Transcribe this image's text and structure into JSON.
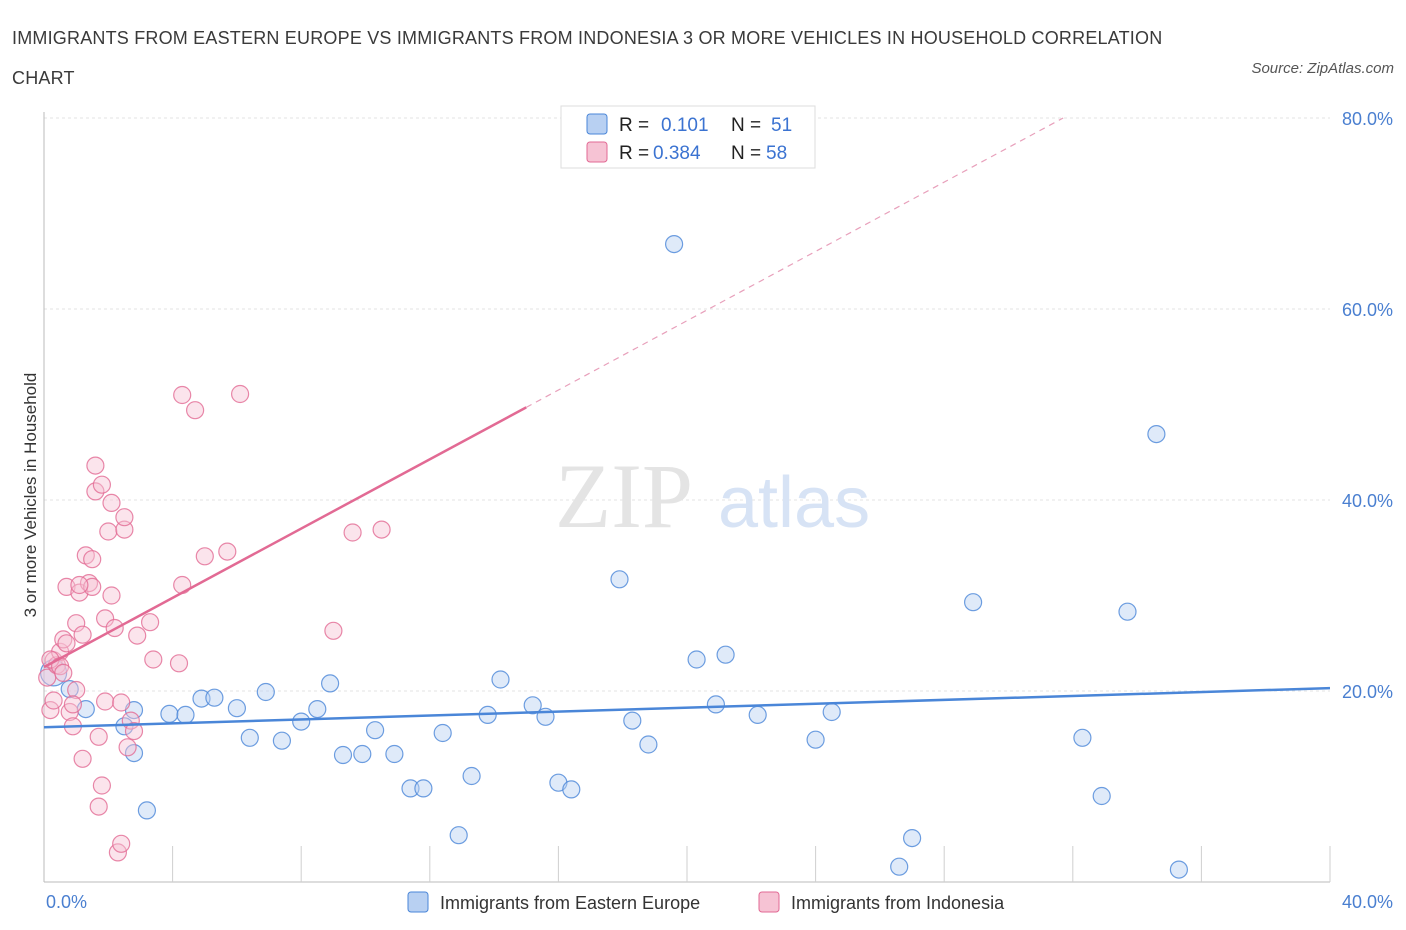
{
  "title": "IMMIGRANTS FROM EASTERN EUROPE VS IMMIGRANTS FROM INDONESIA 3 OR MORE VEHICLES IN HOUSEHOLD CORRELATION CHART",
  "source": "Source: ZipAtlas.com",
  "colors": {
    "blue": "#4a86d8",
    "blue_fill": "#b8d0f2",
    "pink": "#e26a94",
    "pink_fill": "#f6c3d4",
    "tick_text": "#4a7fd0"
  },
  "legend": {
    "series": [
      {
        "r_label": "R =",
        "r_value": "0.101",
        "n_label": "N =",
        "n_value": "51"
      },
      {
        "r_label": "R =",
        "r_value": "0.384",
        "n_label": "N =",
        "n_value": "58"
      }
    ]
  },
  "bottom_legend": [
    "Immigrants from Eastern Europe",
    "Immigrants from Indonesia"
  ],
  "chart_data": {
    "type": "scatter",
    "title": "IMMIGRANTS FROM EASTERN EUROPE VS IMMIGRANTS FROM INDONESIA 3 OR MORE VEHICLES IN HOUSEHOLD CORRELATION CHART",
    "xlabel": "",
    "ylabel": "3 or more Vehicles in Household",
    "xlim": [
      0,
      40
    ],
    "ylim": [
      0,
      80
    ],
    "x_tick_labels": [
      "0.0%",
      "40.0%"
    ],
    "y_tick_labels": [
      "20.0%",
      "40.0%",
      "60.0%",
      "80.0%"
    ],
    "y_tick_values": [
      20,
      40,
      60,
      80
    ],
    "grid": true,
    "watermark": [
      "ZIP",
      "atlas"
    ],
    "series": [
      {
        "name": "Immigrants from Eastern Europe",
        "color": "#4a86d8",
        "trend": {
          "x0": 0,
          "y0": 16.2,
          "x1": 40,
          "y1": 20.3,
          "dashed_from_x": null
        },
        "points": [
          [
            0.3,
            21.9
          ],
          [
            0.8,
            20.2
          ],
          [
            1.3,
            18.1
          ],
          [
            2.5,
            16.3
          ],
          [
            2.8,
            18.0
          ],
          [
            3.2,
            7.5
          ],
          [
            3.9,
            17.6
          ],
          [
            4.4,
            17.5
          ],
          [
            4.9,
            19.2
          ],
          [
            5.3,
            19.3
          ],
          [
            6.0,
            18.2
          ],
          [
            6.4,
            15.1
          ],
          [
            6.9,
            19.9
          ],
          [
            7.4,
            14.8
          ],
          [
            8.0,
            16.8
          ],
          [
            8.5,
            18.1
          ],
          [
            8.9,
            20.8
          ],
          [
            9.3,
            13.3
          ],
          [
            9.9,
            13.4
          ],
          [
            10.3,
            15.9
          ],
          [
            10.9,
            13.4
          ],
          [
            11.4,
            9.8
          ],
          [
            11.8,
            9.8
          ],
          [
            12.4,
            15.6
          ],
          [
            12.9,
            4.9
          ],
          [
            13.3,
            11.1
          ],
          [
            13.8,
            17.5
          ],
          [
            14.2,
            21.2
          ],
          [
            15.2,
            18.5
          ],
          [
            15.6,
            17.3
          ],
          [
            16.0,
            10.4
          ],
          [
            16.4,
            9.7
          ],
          [
            17.9,
            31.7
          ],
          [
            18.3,
            16.9
          ],
          [
            18.8,
            14.4
          ],
          [
            19.6,
            66.8
          ],
          [
            20.3,
            23.3
          ],
          [
            20.9,
            18.6
          ],
          [
            21.2,
            23.8
          ],
          [
            22.2,
            17.5
          ],
          [
            24.0,
            14.9
          ],
          [
            24.5,
            17.8
          ],
          [
            27.0,
            4.6
          ],
          [
            26.6,
            1.6
          ],
          [
            28.9,
            29.3
          ],
          [
            32.3,
            15.1
          ],
          [
            32.9,
            9.0
          ],
          [
            33.7,
            28.3
          ],
          [
            34.6,
            46.9
          ],
          [
            35.3,
            1.3
          ],
          [
            2.8,
            13.5
          ]
        ]
      },
      {
        "name": "Immigrants from Indonesia",
        "color": "#e26a94",
        "trend": {
          "x0": 0,
          "y0": 22.5,
          "x1": 15.0,
          "y1": 49.7,
          "dashed_to_x": 31.7,
          "dashed_to_y": 80.0
        },
        "points": [
          [
            0.1,
            21.4
          ],
          [
            0.2,
            18.0
          ],
          [
            0.3,
            23.2
          ],
          [
            0.4,
            22.7
          ],
          [
            0.5,
            24.1
          ],
          [
            0.6,
            25.4
          ],
          [
            0.7,
            25.0
          ],
          [
            0.7,
            30.9
          ],
          [
            0.8,
            17.8
          ],
          [
            0.9,
            16.3
          ],
          [
            1.0,
            20.1
          ],
          [
            1.0,
            27.1
          ],
          [
            1.1,
            30.3
          ],
          [
            1.2,
            25.9
          ],
          [
            1.2,
            12.9
          ],
          [
            1.3,
            34.2
          ],
          [
            1.4,
            31.3
          ],
          [
            1.5,
            30.9
          ],
          [
            1.5,
            33.8
          ],
          [
            1.6,
            43.6
          ],
          [
            1.6,
            40.9
          ],
          [
            1.7,
            15.2
          ],
          [
            1.7,
            7.9
          ],
          [
            1.8,
            10.1
          ],
          [
            1.8,
            41.6
          ],
          [
            1.9,
            27.6
          ],
          [
            1.9,
            18.9
          ],
          [
            2.0,
            36.7
          ],
          [
            2.1,
            30.0
          ],
          [
            2.1,
            39.7
          ],
          [
            2.2,
            26.6
          ],
          [
            2.3,
            3.1
          ],
          [
            2.4,
            18.8
          ],
          [
            2.4,
            4.0
          ],
          [
            2.5,
            36.9
          ],
          [
            2.5,
            38.2
          ],
          [
            2.6,
            14.1
          ],
          [
            2.7,
            16.9
          ],
          [
            2.8,
            15.8
          ],
          [
            2.9,
            25.8
          ],
          [
            3.3,
            27.2
          ],
          [
            3.4,
            23.3
          ],
          [
            4.2,
            22.9
          ],
          [
            4.3,
            31.1
          ],
          [
            4.3,
            51.0
          ],
          [
            4.7,
            49.4
          ],
          [
            5.0,
            34.1
          ],
          [
            5.7,
            34.6
          ],
          [
            6.1,
            51.1
          ],
          [
            9.0,
            26.3
          ],
          [
            9.6,
            36.6
          ],
          [
            10.5,
            36.9
          ],
          [
            0.3,
            19.0
          ],
          [
            0.2,
            23.3
          ],
          [
            0.5,
            22.6
          ],
          [
            0.9,
            18.6
          ],
          [
            1.1,
            31.1
          ],
          [
            0.6,
            21.9
          ]
        ]
      }
    ]
  }
}
